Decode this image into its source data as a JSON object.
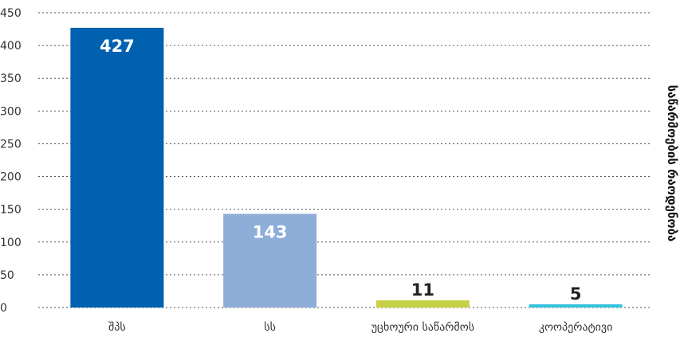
{
  "chart_data": {
    "type": "bar",
    "categories": [
      "შპს",
      "სს",
      "უცხოური საწარმოს",
      "კოოპერატივი"
    ],
    "values": [
      427,
      143,
      11,
      5
    ],
    "data_labels": [
      "427",
      "143",
      "11",
      "5"
    ],
    "colors": [
      "#0061b0",
      "#8eadd9",
      "#c7d146",
      "#34c4dc"
    ],
    "label_colors": [
      "#ffffff",
      "#ffffff",
      "#222222",
      "#222222"
    ],
    "ylabel": "საწარმოების რაოდენობა",
    "ylim": [
      0,
      450
    ],
    "yticks": [
      "0",
      "50",
      "100",
      "150",
      "200",
      "250",
      "300",
      "350",
      "400",
      "450"
    ],
    "grid": true,
    "legend": "none"
  }
}
